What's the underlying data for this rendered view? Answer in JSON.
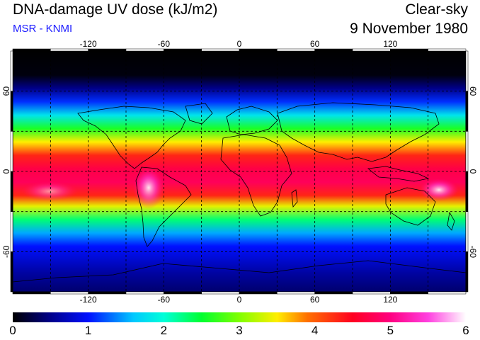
{
  "header": {
    "title": "DNA-damage UV dose (kJ/m2)",
    "source": "MSR - KNMI",
    "condition": "Clear-sky",
    "date": "9 November 1980"
  },
  "map": {
    "lon_ticks": [
      -120,
      -60,
      0,
      60,
      120
    ],
    "lat_ticks": [
      60,
      0,
      -60
    ],
    "lon_labels": [
      "-120",
      "-60",
      "0",
      "60",
      "120"
    ],
    "lat_labels": [
      "60",
      "0",
      "-60"
    ],
    "lon_range": [
      -180,
      180
    ],
    "lat_range": [
      -90,
      90
    ],
    "grid": "dashed every 30 degrees"
  },
  "colorbar": {
    "min": 0,
    "max": 6,
    "labels": [
      "0",
      "1",
      "2",
      "3",
      "4",
      "5",
      "6"
    ],
    "stops": [
      {
        "v": 0.0,
        "c": "#000000"
      },
      {
        "v": 0.5,
        "c": "#00008a"
      },
      {
        "v": 1.0,
        "c": "#0010ff"
      },
      {
        "v": 1.6,
        "c": "#00c8ff"
      },
      {
        "v": 2.0,
        "c": "#00ffd8"
      },
      {
        "v": 2.5,
        "c": "#00ff30"
      },
      {
        "v": 3.0,
        "c": "#80ff00"
      },
      {
        "v": 3.5,
        "c": "#ffee00"
      },
      {
        "v": 3.9,
        "c": "#ff7000"
      },
      {
        "v": 4.5,
        "c": "#ff0020"
      },
      {
        "v": 5.0,
        "c": "#ff0080"
      },
      {
        "v": 5.5,
        "c": "#ff40e0"
      },
      {
        "v": 6.0,
        "c": "#ffffff"
      }
    ]
  }
}
